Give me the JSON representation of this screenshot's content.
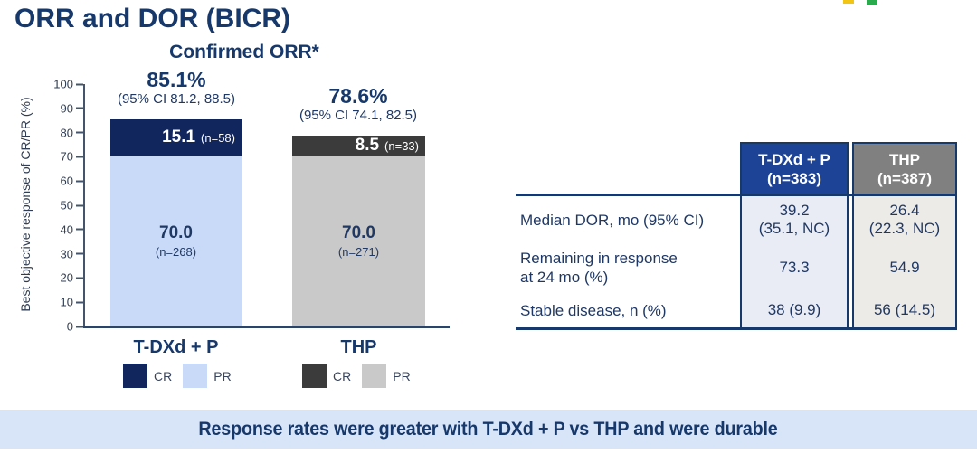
{
  "slide": {
    "title": "ORR and DOR (BICR)",
    "banner": "Response rates were greater with T-DXd + P vs THP and were durable",
    "colors": {
      "navy": "#1F3864",
      "banner_bg": "#D8E5F9"
    }
  },
  "logo_fragments": [
    {
      "name": "yellow-mark",
      "color": "#F2C413"
    },
    {
      "name": "green-mark",
      "color": "#2BA94D"
    }
  ],
  "chart_data": {
    "type": "bar",
    "stacked": true,
    "title": "Confirmed ORR*",
    "ylabel": "Best objective response of CR/PR (%)",
    "ylim": [
      0,
      100
    ],
    "yticks": [
      "100",
      "90",
      "80",
      "70",
      "60",
      "50",
      "40",
      "30",
      "20",
      "10",
      "0"
    ],
    "categories": [
      "T-DXd + P",
      "THP"
    ],
    "series": [
      {
        "name": "CR",
        "values": [
          15.1,
          8.5
        ],
        "counts": [
          58,
          33
        ],
        "colors": [
          "#12265E",
          "#3B3B3B"
        ]
      },
      {
        "name": "PR",
        "values": [
          70.0,
          70.0
        ],
        "counts": [
          268,
          271
        ],
        "colors": [
          "#C8DAF8",
          "#C9C9C9"
        ]
      }
    ],
    "bars": [
      {
        "category": "T-DXd + P",
        "total_label": "85.1%",
        "ci_label": "(95% CI 81.2, 88.5)",
        "cr_label": "15.1",
        "cr_n": "(n=58)",
        "pr_label": "70.0",
        "pr_n": "(n=268)"
      },
      {
        "category": "THP",
        "total_label": "78.6%",
        "ci_label": "(95% CI 74.1, 82.5)",
        "cr_label": "8.5",
        "cr_n": "(n=33)",
        "pr_label": "70.0",
        "pr_n": "(n=271)"
      }
    ],
    "legend": [
      {
        "group": "T-DXd + P",
        "entries": [
          {
            "label": "CR",
            "color": "#12265E"
          },
          {
            "label": "PR",
            "color": "#C8DAF8"
          }
        ]
      },
      {
        "group": "THP",
        "entries": [
          {
            "label": "CR",
            "color": "#3B3B3B"
          },
          {
            "label": "PR",
            "color": "#C9C9C9"
          }
        ]
      }
    ],
    "grid": false,
    "legend_position": "bottom"
  },
  "table": {
    "columns": [
      {
        "title": "T-DXd + P",
        "n": "(n=383)",
        "header_bg": "#1D4396",
        "cell_bg": "#E9ECF5"
      },
      {
        "title": "THP",
        "n": "(n=387)",
        "header_bg": "#808080",
        "cell_bg": "#ECEBE8"
      }
    ],
    "rows": [
      {
        "label1": "Median DOR, mo (95% CI)",
        "label2": "",
        "v1l1": "39.2",
        "v1l2": "(35.1, NC)",
        "v2l1": "26.4",
        "v2l2": "(22.3, NC)"
      },
      {
        "label1": "Remaining in response",
        "label2": "at 24 mo (%)",
        "v1l1": "73.3",
        "v1l2": "",
        "v2l1": "54.9",
        "v2l2": ""
      },
      {
        "label1": "Stable disease, n (%)",
        "label2": "",
        "v1l1": "38 (9.9)",
        "v1l2": "",
        "v2l1": "56 (14.5)",
        "v2l2": ""
      }
    ]
  }
}
